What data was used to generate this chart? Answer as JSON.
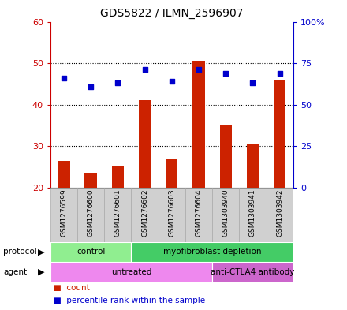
{
  "title": "GDS5822 / ILMN_2596907",
  "samples": [
    "GSM1276599",
    "GSM1276600",
    "GSM1276601",
    "GSM1276602",
    "GSM1276603",
    "GSM1276604",
    "GSM1303940",
    "GSM1303941",
    "GSM1303942"
  ],
  "count_values": [
    26.5,
    23.5,
    25.0,
    41.0,
    27.0,
    50.5,
    35.0,
    30.5,
    46.0
  ],
  "percentile_values": [
    66,
    61,
    63,
    71,
    64,
    71,
    69,
    63,
    69
  ],
  "ylim_left": [
    20,
    60
  ],
  "ylim_right": [
    0,
    100
  ],
  "yticks_left": [
    20,
    30,
    40,
    50,
    60
  ],
  "yticks_right": [
    0,
    25,
    50,
    75,
    100
  ],
  "ytick_labels_right": [
    "0",
    "25",
    "50",
    "75",
    "100%"
  ],
  "bar_color": "#cc2200",
  "dot_color": "#0000cc",
  "bar_bottom": 20,
  "protocol_groups": [
    {
      "label": "control",
      "start": 0,
      "end": 3,
      "color": "#90ee90"
    },
    {
      "label": "myofibroblast depletion",
      "start": 3,
      "end": 9,
      "color": "#44cc66"
    }
  ],
  "agent_groups": [
    {
      "label": "untreated",
      "start": 0,
      "end": 6,
      "color": "#ee88ee"
    },
    {
      "label": "anti-CTLA4 antibody",
      "start": 6,
      "end": 9,
      "color": "#cc66cc"
    }
  ],
  "background_color": "#ffffff",
  "plot_bg_color": "#ffffff",
  "dotted_lines": [
    30,
    40,
    50
  ],
  "tick_color_left": "#cc0000",
  "tick_color_right": "#0000cc",
  "sample_box_color": "#d0d0d0",
  "sample_box_edge": "#aaaaaa"
}
